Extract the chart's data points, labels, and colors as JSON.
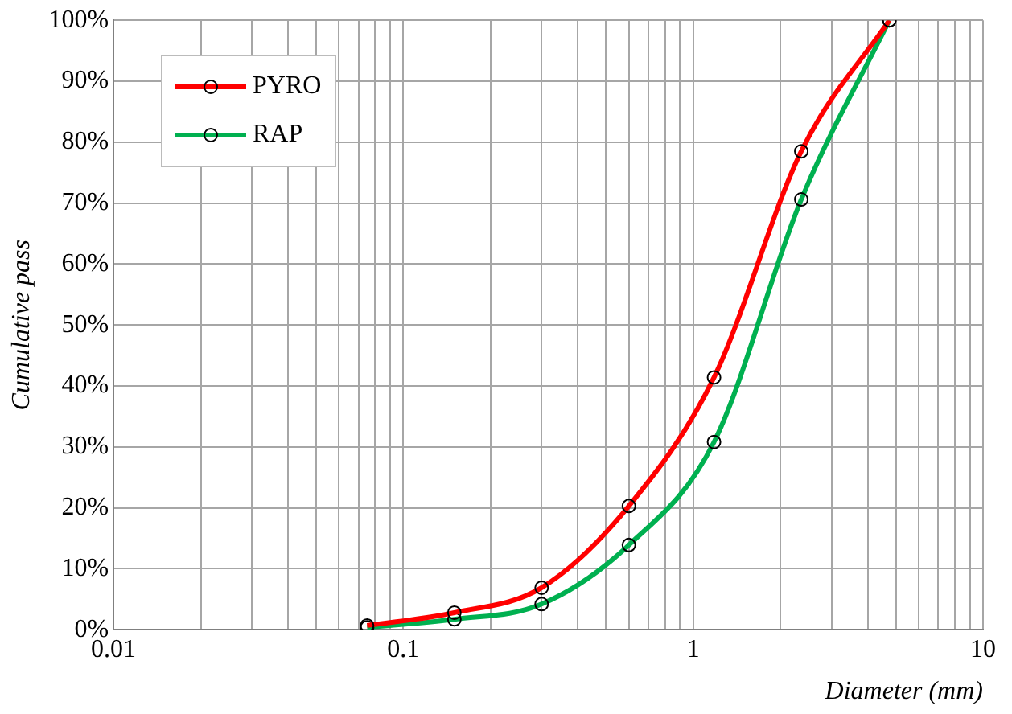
{
  "chart_data": {
    "type": "line",
    "xlabel": "Diameter (mm)",
    "ylabel": "Cumulative pass",
    "log": "x",
    "grid": true,
    "legend": "top left",
    "marker": "circle",
    "line_style": "solid",
    "xlim": [
      0.01,
      10
    ],
    "ylim": [
      0,
      100
    ],
    "xticks": [
      0.01,
      {
        "value": 0.02,
        "label": null
      },
      {
        "value": 0.03,
        "label": null
      },
      {
        "value": 0.04,
        "label": null
      },
      {
        "value": 0.05,
        "label": null
      },
      {
        "value": 0.06,
        "label": null
      },
      {
        "value": 0.07,
        "label": null
      },
      {
        "value": 0.08,
        "label": null
      },
      {
        "value": 0.09,
        "label": null
      },
      0.1,
      {
        "value": 0.2,
        "label": null
      },
      {
        "value": 0.3,
        "label": null
      },
      {
        "value": 0.4,
        "label": null
      },
      {
        "value": 0.5,
        "label": null
      },
      {
        "value": 0.6,
        "label": null
      },
      {
        "value": 0.7,
        "label": null
      },
      {
        "value": 0.8,
        "label": null
      },
      {
        "value": 0.9,
        "label": null
      },
      1,
      {
        "value": 2,
        "label": null
      },
      {
        "value": 3,
        "label": null
      },
      {
        "value": 4,
        "label": null
      },
      {
        "value": 5,
        "label": null
      },
      {
        "value": 6,
        "label": null
      },
      {
        "value": 7,
        "label": null
      },
      {
        "value": 8,
        "label": null
      },
      {
        "value": 9,
        "label": null
      },
      10
    ],
    "yticks": [
      {
        "value": 0,
        "label": "0%"
      },
      {
        "value": 10,
        "label": "10%"
      },
      {
        "value": 20,
        "label": "20%"
      },
      {
        "value": 30,
        "label": "30%"
      },
      {
        "value": 40,
        "label": "40%"
      },
      {
        "value": 50,
        "label": "50%"
      },
      {
        "value": 60,
        "label": "60%"
      },
      {
        "value": 70,
        "label": "70%"
      },
      {
        "value": 80,
        "label": "80%"
      },
      {
        "value": 90,
        "label": "90%"
      },
      {
        "value": 100,
        "label": "100%"
      }
    ],
    "x": [
      0.075,
      0.15,
      0.3,
      0.6,
      1.18,
      2.36,
      4.75
    ],
    "series": [
      {
        "name": "PYRO",
        "color": "#ff0000",
        "values": [
          0.7,
          2.8,
          6.9,
          20.3,
          41.4,
          78.5,
          100
        ]
      },
      {
        "name": "RAP",
        "color": "#00b050",
        "values": [
          0.4,
          1.7,
          4.2,
          13.9,
          30.8,
          70.6,
          100
        ]
      }
    ]
  }
}
